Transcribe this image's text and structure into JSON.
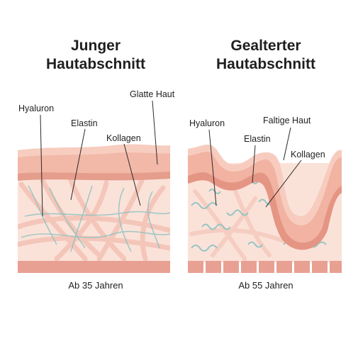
{
  "left": {
    "title_line1": "Junger",
    "title_line2": "Hautabschnitt",
    "caption": "Ab 35 Jahren",
    "labels": {
      "hyaluron": "Hyaluron",
      "elastin": "Elastin",
      "kollagen": "Kollagen",
      "surface": "Glatte Haut"
    }
  },
  "right": {
    "title_line1": "Gealterter",
    "title_line2": "Hautabschnitt",
    "caption": "Ab 55 Jahren",
    "labels": {
      "hyaluron": "Hyaluron",
      "elastin": "Elastin",
      "kollagen": "Kollagen",
      "surface": "Faltige Haut"
    }
  },
  "colors": {
    "epidermis": "#f0b3a3",
    "epidermis_dark": "#e48f7d",
    "dermis": "#fbe2d9",
    "base": "#e8a092",
    "collagen": "#f4c6ba",
    "fiber": "#8cc2c0"
  }
}
